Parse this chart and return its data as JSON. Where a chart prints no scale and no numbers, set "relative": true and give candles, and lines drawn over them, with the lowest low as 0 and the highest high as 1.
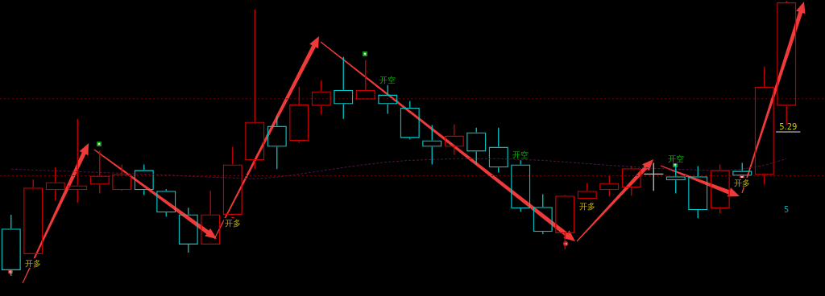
{
  "chart_data": {
    "type": "candlestick",
    "relative": true,
    "categories": [
      null,
      null,
      null,
      null,
      null,
      null,
      null,
      null,
      null,
      null,
      null,
      null,
      null,
      null,
      null,
      null,
      null,
      null,
      null,
      null,
      null,
      null,
      null,
      null,
      null,
      null,
      null,
      null,
      null,
      null,
      null,
      null,
      null,
      null,
      null,
      null
    ],
    "ohlc": [
      [
        0.172,
        0.222,
        0,
        0.02
      ],
      [
        0.079,
        0.35,
        0.079,
        0.321
      ],
      [
        0.312,
        0.394,
        0.274,
        0.341
      ],
      [
        0.312,
        0.571,
        0.265,
        0.329
      ],
      [
        0.332,
        0.455,
        0.3,
        0.364
      ],
      [
        0.312,
        0.405,
        0.309,
        0.37
      ],
      [
        0.385,
        0.405,
        0.294,
        0.312
      ],
      [
        0.309,
        0.315,
        0.216,
        0.23
      ],
      [
        0.224,
        0.248,
        0.085,
        0.114
      ],
      [
        0.114,
        0.309,
        0.114,
        0.224
      ],
      [
        0.222,
        0.469,
        0.222,
        0.405
      ],
      [
        0.42,
        0.968,
        0.388,
        0.56
      ],
      [
        0.545,
        0.583,
        0.388,
        0.469
      ],
      [
        0.49,
        0.688,
        0.484,
        0.624
      ],
      [
        0.618,
        0.711,
        0.586,
        0.671
      ],
      [
        0.676,
        0.796,
        0.571,
        0.624
      ],
      [
        0.641,
        0.784,
        0.641,
        0.676
      ],
      [
        0.659,
        0.694,
        0.589,
        0.624
      ],
      [
        0.612,
        0.636,
        0.496,
        0.501
      ],
      [
        0.493,
        0.548,
        0.405,
        0.469
      ],
      [
        0.469,
        0.551,
        0.44,
        0.51
      ],
      [
        0.522,
        0.539,
        0.405,
        0.452
      ],
      [
        0.469,
        0.539,
        0.376,
        0.394
      ],
      [
        0.405,
        0.42,
        0.233,
        0.245
      ],
      [
        0.251,
        0.297,
        0.152,
        0.16
      ],
      [
        0.155,
        0.294,
        0.096,
        0.292
      ],
      [
        0.28,
        0.338,
        0.28,
        0.309
      ],
      [
        0.312,
        0.364,
        0.289,
        0.338
      ],
      [
        0.321,
        0.399,
        0.292,
        0.391
      ],
      [
        0.37,
        0.411,
        0.309,
        0.37
      ],
      [
        0.362,
        0.402,
        0.3,
        0.347
      ],
      [
        0.362,
        0.399,
        0.21,
        0.239
      ],
      [
        0.245,
        0.405,
        0.227,
        0.385
      ],
      [
        0.382,
        0.411,
        0.364,
        0.364
      ],
      [
        0.367,
        0.761,
        0.332,
        0.688
      ],
      [
        0.618,
        1,
        0.548,
        0.994
      ]
    ],
    "colors": [
      "#00c8c8",
      "#cc0000",
      "#cc0000",
      "#cc0000",
      "#cc0000",
      "#cc0000",
      "#00c8c8",
      "#00c8c8",
      "#00c8c8",
      "#cc0000",
      "#cc0000",
      "#cc0000",
      "#00c8c8",
      "#cc0000",
      "#cc0000",
      "#00c8c8",
      "#cc0000",
      "#00c8c8",
      "#00c8c8",
      "#00c8c8",
      "#cc0000",
      "#00c8c8",
      "#00c8c8",
      "#00c8c8",
      "#00c8c8",
      "#cc0000",
      "#cc0000",
      "#cc0000",
      "#cc0000",
      "#c0c0c0",
      "#00c8c8",
      "#00c8c8",
      "#cc0000",
      "#00c8c8",
      "#cc0000",
      "#cc0000"
    ],
    "series": [
      {
        "type": "line",
        "color": "#4a1842",
        "line_style": "dashed",
        "values": [
          0.388,
          0.385,
          0.382,
          0.379,
          0.376,
          0.373,
          0.37,
          0.367,
          0.362,
          0.359,
          0.356,
          0.353,
          0.359,
          0.37,
          0.382,
          0.394,
          0.405,
          0.414,
          0.42,
          0.423,
          0.426,
          0.426,
          0.426,
          0.423,
          0.42,
          0.414,
          0.408,
          0.402,
          0.397,
          0.391,
          0.388,
          0.385,
          0.382,
          0.388,
          0.402,
          0.426
        ]
      }
    ],
    "ref_lines": [
      {
        "axis": "y",
        "value": 0.644,
        "color": "#7a0000",
        "line_style": "dotted"
      },
      {
        "axis": "y",
        "value": 0.364,
        "color": "#7a0000",
        "line_style": "dotted"
      }
    ],
    "annotations": [
      "开多",
      "开多",
      "开空",
      "开空",
      "开多",
      "开空",
      "开多",
      "5.29",
      "5"
    ]
  }
}
